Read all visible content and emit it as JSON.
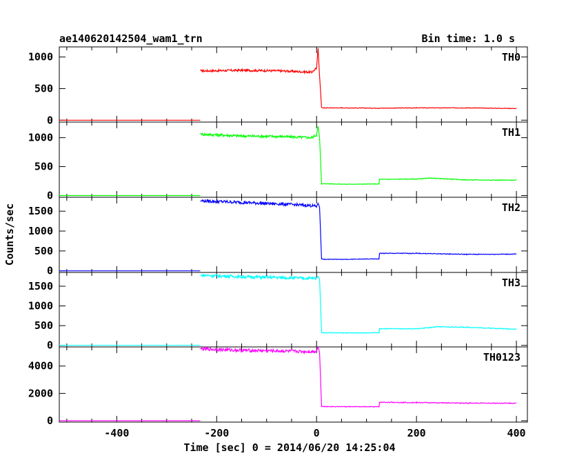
{
  "chart_data": {
    "type": "line",
    "title": "ae140620142504_wam1_trn",
    "subtitle": "Bin time: 1.0 s",
    "xlabel": "Time [sec] 0 = 2014/06/20 14:25:04",
    "ylabel": "Counts/sec",
    "xlim": [
      -515,
      422
    ],
    "xticks": [
      -400,
      -200,
      0,
      200,
      400
    ],
    "grid": false,
    "panels": [
      {
        "name": "TH0",
        "color": "#ff0000",
        "ylim": [
          -30,
          1160
        ],
        "yticks": [
          0,
          500,
          1000
        ],
        "segments": [
          {
            "x": [
              -515,
              -233
            ],
            "y": [
              0,
              0
            ]
          },
          {
            "x": [
              -233,
              -230,
              -150,
              -70,
              -10,
              0,
              3,
              6,
              10,
              15,
              50,
              125,
              200,
              300,
              400
            ],
            "y": [
              800,
              780,
              790,
              780,
              760,
              820,
              1140,
              700,
              200,
              195,
              195,
              190,
              195,
              195,
              185
            ]
          }
        ]
      },
      {
        "name": "TH1",
        "color": "#00ff00",
        "ylim": [
          -30,
          1270
        ],
        "yticks": [
          0,
          500,
          1000
        ],
        "segments": [
          {
            "x": [
              -515,
              -233
            ],
            "y": [
              0,
              0
            ]
          },
          {
            "x": [
              -233,
              -230,
              -150,
              -70,
              -10,
              0,
              3,
              6,
              10,
              15,
              60,
              125,
              126,
              200,
              230,
              300,
              400
            ],
            "y": [
              1080,
              1060,
              1030,
              1020,
              1000,
              1050,
              1200,
              1000,
              200,
              205,
              195,
              200,
              280,
              285,
              300,
              270,
              265
            ]
          }
        ]
      },
      {
        "name": "TH2",
        "color": "#0000ff",
        "ylim": [
          -40,
          1850
        ],
        "yticks": [
          0,
          500,
          1000,
          1500
        ],
        "segments": [
          {
            "x": [
              -515,
              -233
            ],
            "y": [
              0,
              0
            ]
          },
          {
            "x": [
              -233,
              -230,
              -150,
              -70,
              -10,
              0,
              3,
              6,
              10,
              15,
              60,
              125,
              126,
              200,
              300,
              400
            ],
            "y": [
              1750,
              1760,
              1720,
              1680,
              1640,
              1620,
              1700,
              1600,
              300,
              290,
              290,
              300,
              440,
              440,
              415,
              420
            ]
          }
        ]
      },
      {
        "name": "TH3",
        "color": "#00ffff",
        "ylim": [
          -40,
          1850
        ],
        "yticks": [
          0,
          500,
          1000,
          1500
        ],
        "segments": [
          {
            "x": [
              -515,
              -233
            ],
            "y": [
              0,
              0
            ]
          },
          {
            "x": [
              -233,
              -230,
              -150,
              -70,
              -10,
              0,
              3,
              6,
              10,
              15,
              60,
              125,
              126,
              200,
              240,
              300,
              400
            ],
            "y": [
              1760,
              1780,
              1740,
              1720,
              1700,
              1710,
              1750,
              1680,
              320,
              320,
              315,
              320,
              420,
              420,
              470,
              460,
              410
            ]
          }
        ]
      },
      {
        "name": "TH0123",
        "color": "#ff00ff",
        "ylim": [
          -100,
          5400
        ],
        "yticks": [
          0,
          2000,
          4000
        ],
        "segments": [
          {
            "x": [
              -515,
              -233
            ],
            "y": [
              0,
              0
            ]
          },
          {
            "x": [
              -233,
              -230,
              -150,
              -70,
              -10,
              0,
              3,
              6,
              10,
              15,
              60,
              125,
              126,
              200,
              300,
              400
            ],
            "y": [
              5300,
              5250,
              5150,
              5100,
              5050,
              5100,
              5400,
              5000,
              1050,
              1040,
              1030,
              1020,
              1350,
              1330,
              1290,
              1280
            ]
          }
        ]
      }
    ]
  }
}
